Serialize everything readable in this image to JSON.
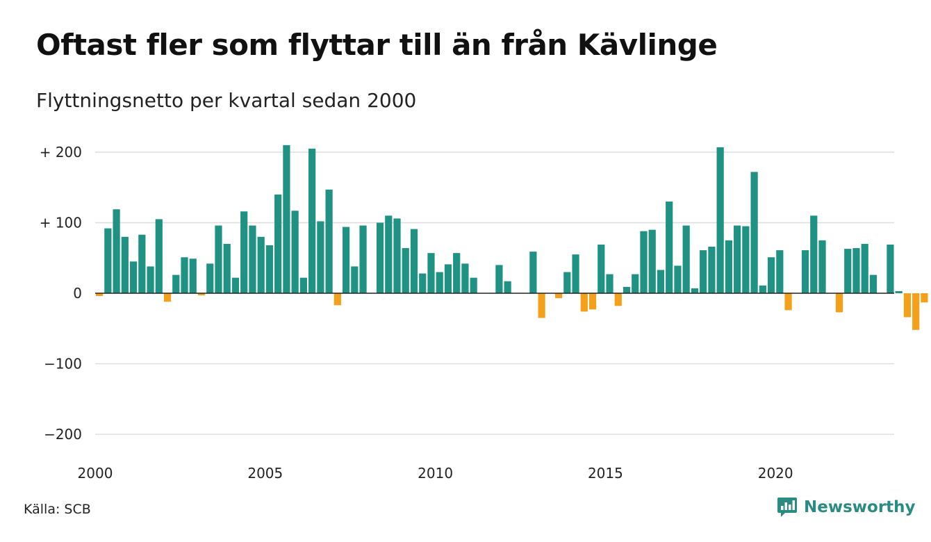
{
  "title": "Oftast fler som flyttar till än från Kävlinge",
  "subtitle": "Flyttningsnetto per kvartal sedan 2000",
  "source": "Källa: SCB",
  "brand": {
    "name": "Newsworthy",
    "icon": "newsworthy-chart-icon",
    "color": "#2a8c80"
  },
  "chart_data": {
    "type": "bar",
    "x_start": "2000 Q1",
    "frequency": "quarterly",
    "ylim": [
      -200,
      200
    ],
    "y_ticks": [
      {
        "value": 200,
        "label": "+ 200"
      },
      {
        "value": 100,
        "label": "+ 100"
      },
      {
        "value": 0,
        "label": "0"
      },
      {
        "value": -100,
        "label": "−100"
      },
      {
        "value": -200,
        "label": "−200"
      }
    ],
    "x_ticks": [
      "2000",
      "2005",
      "2010",
      "2015",
      "2020"
    ],
    "grid": true,
    "colors": {
      "positive": "#1f9283",
      "negative": "#f5a01b",
      "grid": "#dddddd",
      "zero": "#222222"
    },
    "values": [
      -4,
      92,
      119,
      80,
      45,
      83,
      38,
      105,
      -12,
      26,
      51,
      49,
      -3,
      42,
      96,
      70,
      22,
      116,
      96,
      80,
      68,
      140,
      210,
      117,
      22,
      205,
      102,
      147,
      -17,
      94,
      38,
      96,
      0,
      100,
      110,
      106,
      64,
      91,
      28,
      57,
      30,
      41,
      57,
      42,
      22,
      0,
      0,
      40,
      17,
      0,
      0,
      59,
      -35,
      0,
      -7,
      30,
      55,
      -26,
      -23,
      69,
      27,
      -18,
      9,
      27,
      88,
      90,
      33,
      130,
      39,
      96,
      7,
      61,
      66,
      207,
      75,
      96,
      95,
      172,
      11,
      51,
      61,
      -24,
      0,
      61,
      110,
      75,
      0,
      -27,
      63,
      64,
      70,
      26,
      0,
      69,
      3,
      -34,
      -52,
      -13
    ]
  }
}
